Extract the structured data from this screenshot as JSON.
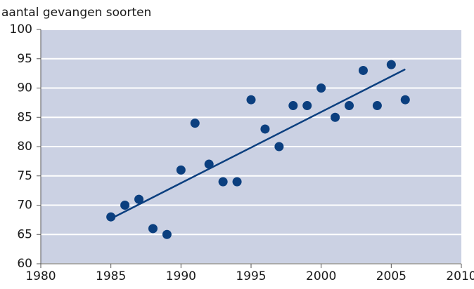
{
  "chart_data": {
    "type": "scatter",
    "y_label": "aantal gevangen soorten",
    "x": [
      1985,
      1986,
      1987,
      1988,
      1989,
      1990,
      1991,
      1992,
      1993,
      1994,
      1995,
      1996,
      1997,
      1998,
      1999,
      2000,
      2001,
      2002,
      2003,
      2004,
      2005,
      2006
    ],
    "values": [
      68,
      70,
      71,
      66,
      65,
      76,
      84,
      77,
      74,
      74,
      88,
      83,
      80,
      87,
      87,
      90,
      85,
      87,
      93,
      87,
      94,
      88
    ],
    "color": "#0b3f7f",
    "trend": {
      "x": [
        1985,
        2006
      ],
      "values": [
        67.7,
        93.2
      ]
    },
    "xlim": [
      1980,
      2010
    ],
    "xticks": [
      1980,
      1985,
      1990,
      1995,
      2000,
      2005,
      2010
    ],
    "ylim": [
      60,
      100
    ],
    "yticks": [
      60,
      65,
      70,
      75,
      80,
      85,
      90,
      95,
      100
    ],
    "grid": true,
    "background": "#cbd1e3"
  }
}
